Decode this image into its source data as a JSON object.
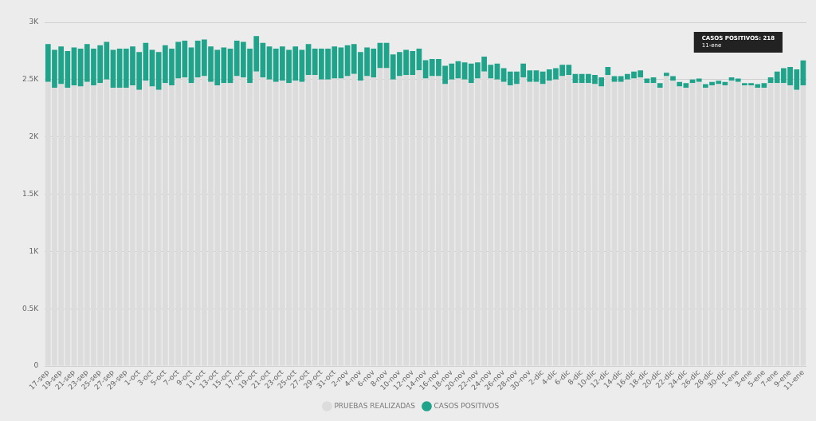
{
  "chart_data": {
    "type": "bar",
    "stacked": true,
    "categories": [
      "17-sep",
      null,
      "19-sep",
      null,
      "21-sep",
      null,
      "23-sep",
      null,
      "25-sep",
      null,
      "27-sep",
      null,
      "29-sep",
      null,
      "1-oct",
      null,
      "3-oct",
      null,
      "5-oct",
      null,
      "7-oct",
      null,
      "9-oct",
      null,
      "11-oct",
      null,
      "13-oct",
      null,
      "15-oct",
      null,
      "17-oct",
      null,
      "19-oct",
      null,
      "21-oct",
      null,
      "23-oct",
      null,
      "25-oct",
      null,
      "27-oct",
      null,
      "29-oct",
      null,
      "31-oct",
      null,
      "2-nov",
      null,
      "4-nov",
      null,
      "6-nov",
      null,
      "8-nov",
      null,
      "10-nov",
      null,
      "12-nov",
      null,
      "14-nov",
      null,
      "16-nov",
      null,
      "18-nov",
      null,
      "20-nov",
      null,
      "22-nov",
      null,
      "24-nov",
      null,
      "26-nov",
      null,
      "28-nov",
      null,
      "30-nov",
      null,
      "2-dic",
      null,
      "4-dic",
      null,
      "6-dic",
      null,
      "8-dic",
      null,
      "10-dic",
      null,
      "12-dic",
      null,
      "14-dic",
      null,
      "16-dic",
      null,
      "18-dic",
      null,
      "20-dic",
      null,
      "22-dic",
      null,
      "24-dic",
      null,
      "26-dic",
      null,
      "28-dic",
      null,
      "30-dic",
      null,
      "1-ene",
      null,
      "3-ene",
      null,
      "5-ene",
      null,
      "7-ene",
      null,
      "9-ene",
      null,
      "11-ene"
    ],
    "series": [
      {
        "name": "PRUEBAS REALIZADAS",
        "color": "#dcdcdc",
        "values": [
          2480,
          2430,
          2460,
          2430,
          2450,
          2440,
          2480,
          2450,
          2470,
          2500,
          2430,
          2430,
          2430,
          2450,
          2410,
          2490,
          2440,
          2410,
          2470,
          2450,
          2510,
          2520,
          2470,
          2520,
          2530,
          2480,
          2450,
          2470,
          2470,
          2530,
          2520,
          2470,
          2570,
          2520,
          2500,
          2480,
          2490,
          2470,
          2490,
          2480,
          2540,
          2540,
          2500,
          2500,
          2510,
          2510,
          2530,
          2550,
          2490,
          2530,
          2520,
          2600,
          2600,
          2500,
          2530,
          2540,
          2540,
          2580,
          2510,
          2530,
          2530,
          2460,
          2500,
          2510,
          2500,
          2470,
          2510,
          2570,
          2510,
          2500,
          2480,
          2450,
          2460,
          2520,
          2480,
          2480,
          2460,
          2490,
          2500,
          2530,
          2540,
          2470,
          2470,
          2470,
          2460,
          2440,
          2540,
          2480,
          2480,
          2500,
          2510,
          2520,
          2470,
          2470,
          2430,
          2530,
          2490,
          2440,
          2430,
          2470,
          2480,
          2430,
          2450,
          2460,
          2450,
          2490,
          2480,
          2450,
          2450,
          2430,
          2430,
          2470,
          2470,
          2470,
          2450,
          2410,
          2450
        ]
      },
      {
        "name": "CASOS POSITIVOS",
        "color": "#1fa38a",
        "values": [
          330,
          330,
          330,
          320,
          330,
          330,
          330,
          320,
          330,
          330,
          330,
          340,
          340,
          340,
          330,
          330,
          320,
          330,
          330,
          320,
          320,
          320,
          310,
          320,
          320,
          310,
          310,
          310,
          300,
          310,
          310,
          300,
          310,
          300,
          290,
          290,
          300,
          290,
          300,
          280,
          270,
          230,
          270,
          270,
          280,
          270,
          270,
          260,
          250,
          250,
          250,
          220,
          220,
          220,
          210,
          220,
          210,
          190,
          160,
          150,
          150,
          160,
          140,
          150,
          150,
          170,
          140,
          130,
          120,
          140,
          120,
          120,
          110,
          120,
          100,
          100,
          110,
          100,
          100,
          100,
          90,
          80,
          80,
          80,
          80,
          80,
          70,
          50,
          50,
          50,
          60,
          60,
          40,
          50,
          40,
          30,
          40,
          40,
          40,
          30,
          30,
          30,
          30,
          30,
          30,
          30,
          30,
          20,
          20,
          30,
          40,
          50,
          100,
          130,
          160,
          180,
          218
        ]
      }
    ],
    "ylim": [
      0,
      3000
    ],
    "yticks": [
      0,
      {
        "value": 500,
        "label": "0.5K"
      },
      {
        "value": 1000,
        "label": "1K"
      },
      {
        "value": 1500,
        "label": "1.5K"
      },
      {
        "value": 2000,
        "label": "2K"
      },
      {
        "value": 2500,
        "label": "2.5K"
      },
      {
        "value": 3000,
        "label": "3K"
      }
    ],
    "grid": "y",
    "legend": "bottom",
    "annotations": [
      "CASOS POSITIVOS: 218",
      "11-ene"
    ]
  }
}
